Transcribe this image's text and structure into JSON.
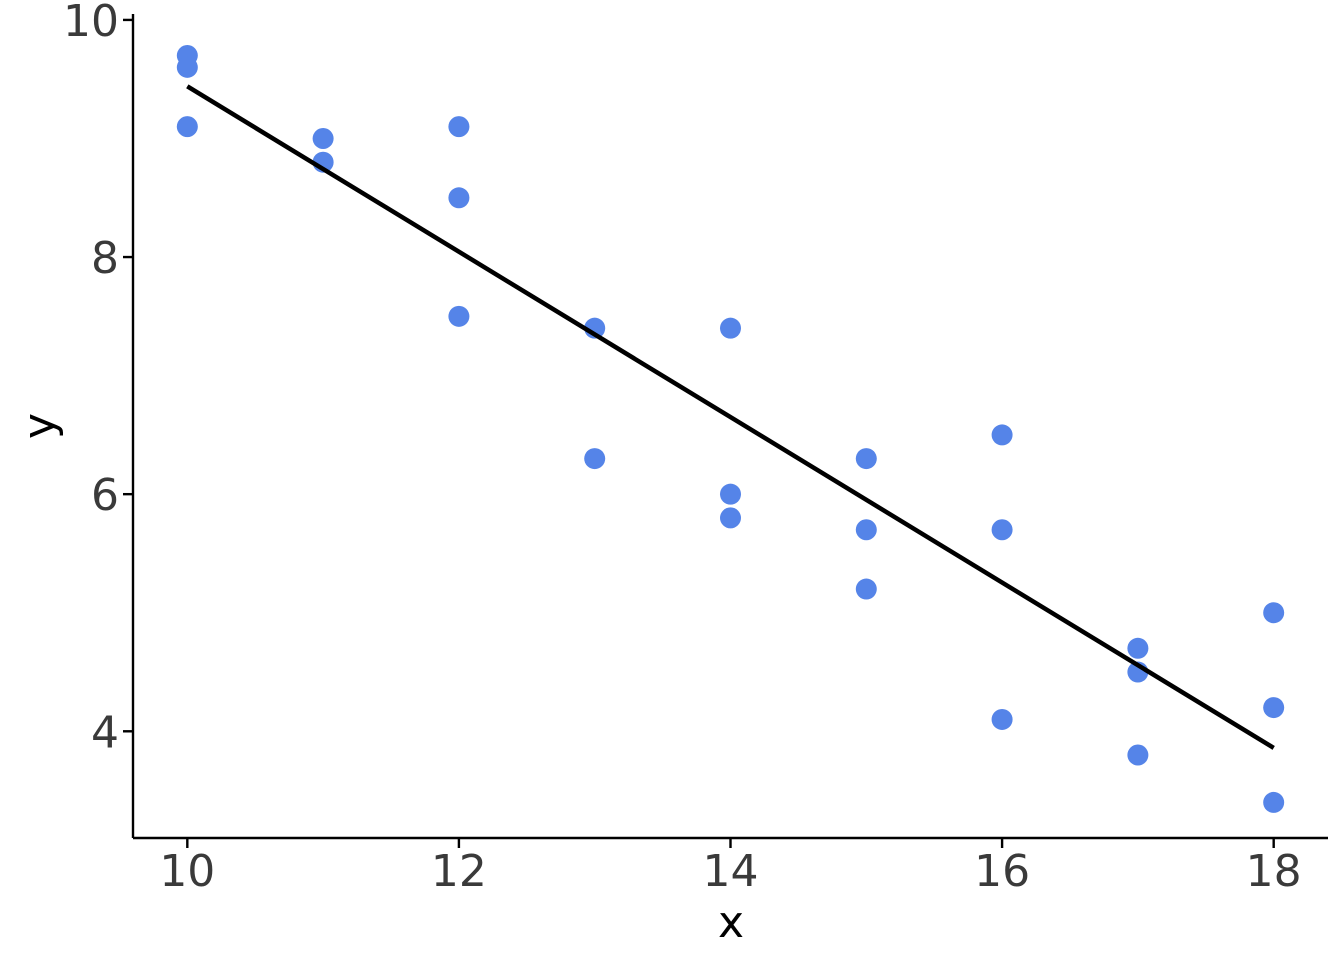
{
  "chart_data": {
    "type": "scatter",
    "title": "",
    "xlabel": "x",
    "ylabel": "y",
    "xlim": [
      9.6,
      18.4
    ],
    "ylim": [
      3.1,
      10.05
    ],
    "xticks": [
      10,
      12,
      14,
      16,
      18
    ],
    "yticks": [
      4,
      6,
      8,
      10
    ],
    "grid": false,
    "legend": "none",
    "point_color": "#5584E8",
    "line_color": "#000000",
    "series": [
      {
        "points": [
          {
            "x": 10,
            "y": 9.7
          },
          {
            "x": 10,
            "y": 9.6
          },
          {
            "x": 10,
            "y": 9.1
          },
          {
            "x": 11,
            "y": 9.0
          },
          {
            "x": 11,
            "y": 8.8
          },
          {
            "x": 12,
            "y": 9.1
          },
          {
            "x": 12,
            "y": 8.5
          },
          {
            "x": 12,
            "y": 7.5
          },
          {
            "x": 13,
            "y": 7.4
          },
          {
            "x": 13,
            "y": 6.3
          },
          {
            "x": 14,
            "y": 7.4
          },
          {
            "x": 14,
            "y": 6.0
          },
          {
            "x": 14,
            "y": 5.8
          },
          {
            "x": 15,
            "y": 6.3
          },
          {
            "x": 15,
            "y": 5.7
          },
          {
            "x": 15,
            "y": 5.2
          },
          {
            "x": 16,
            "y": 6.5
          },
          {
            "x": 16,
            "y": 5.7
          },
          {
            "x": 16,
            "y": 4.1
          },
          {
            "x": 17,
            "y": 4.7
          },
          {
            "x": 17,
            "y": 4.5
          },
          {
            "x": 17,
            "y": 3.8
          },
          {
            "x": 18,
            "y": 5.0
          },
          {
            "x": 18,
            "y": 4.2
          },
          {
            "x": 18,
            "y": 3.4
          }
        ]
      }
    ],
    "fit_line": {
      "x": [
        10,
        18
      ],
      "y": [
        9.44,
        3.86
      ]
    }
  }
}
